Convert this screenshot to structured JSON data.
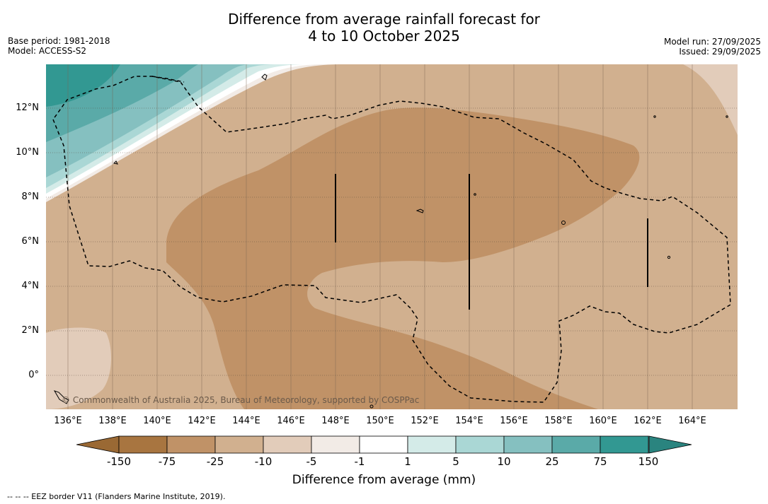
{
  "title": {
    "line1": "Difference from average rainfall forecast for",
    "line2": "4 to 10 October 2025"
  },
  "meta_left": {
    "base_period": "Base period: 1981-2018",
    "model": "Model: ACCESS-S2"
  },
  "meta_right": {
    "model_run": "Model run: 27/09/2025",
    "issued": "Issued: 29/09/2025"
  },
  "lat_labels": [
    "12°N",
    "10°N",
    "8°N",
    "6°N",
    "4°N",
    "2°N",
    "0°"
  ],
  "lon_labels": [
    "136°E",
    "138°E",
    "140°E",
    "142°E",
    "144°E",
    "146°E",
    "148°E",
    "150°E",
    "152°E",
    "154°E",
    "156°E",
    "158°E",
    "160°E",
    "162°E",
    "164°E"
  ],
  "copyright": "© Commonwealth of Australia 2025, Bureau of Meteorology, supported by COSPPac",
  "colorbar": {
    "labels": [
      "-150",
      "-75",
      "-25",
      "-10",
      "-5",
      "-1",
      "1",
      "5",
      "10",
      "25",
      "75",
      "150"
    ],
    "colors": [
      "#a87540",
      "#c09267",
      "#d1b08f",
      "#e2ccba",
      "#f2ebe6",
      "#ffffff",
      "#d4ebe8",
      "#aad7d5",
      "#85c0c0",
      "#5aaaa8",
      "#329892"
    ],
    "low_extend_color": "#9a6934",
    "high_extend_color": "#2a847f",
    "title": "Difference from average (mm)"
  },
  "footer": "--  --  -- EEZ border V11 (Flanders Marine Institute, 2019)."
}
